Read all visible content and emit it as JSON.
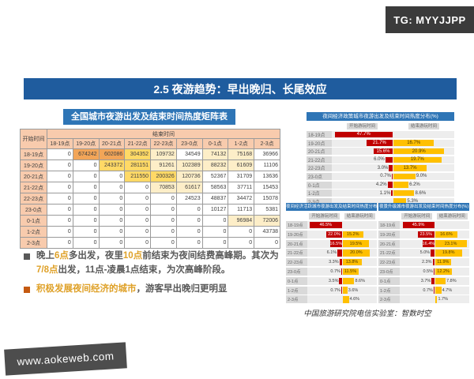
{
  "badge": "TG: MYYJJPP",
  "slide_title": "2.5 夜游趋势：早出晚归、长尾效应",
  "source": "中国旅游研究院电信实验室：智数时空",
  "watermark": "www.aokeweb.com",
  "colors": {
    "title_blue": "#1f5c9e",
    "table_blue": "#2e75b6",
    "header_salmon": "#f8cbad",
    "heat_orange": "#f2a558",
    "heat_yellow": "#ffd966",
    "bar_red": "#c00000",
    "bar_yellow": "#ffc000",
    "highlight_gold": "#dfa128",
    "badge_dark": "#3b3b3b"
  },
  "bullets": [
    {
      "square_color": "#595959",
      "segments": [
        {
          "t": "晚上"
        },
        {
          "t": "6点",
          "hl": true
        },
        {
          "t": "多出发，夜里"
        },
        {
          "t": "10点",
          "hl": true
        },
        {
          "t": "前结束为夜间结费高峰期。其次为"
        },
        {
          "t": "7/8点",
          "hl": true
        },
        {
          "t": "出发，11点-凌晨1点结束，为次高峰阶段。"
        }
      ]
    },
    {
      "square_color": "#c55a11",
      "segments": [
        {
          "t": "积极发展夜间经济的城市",
          "hl": true
        },
        {
          "t": "，游客早出晚归更明显"
        }
      ]
    }
  ],
  "chart_data": [
    {
      "type": "table",
      "title": "全国城市夜游出发及结束时间热度矩阵表",
      "corner": "开始时间",
      "group_header": "结束时间",
      "columns": [
        "18-19点",
        "19-20点",
        "20-21点",
        "21-22点",
        "22-23点",
        "23-0点",
        "0-1点",
        "1-2点",
        "2-3点"
      ],
      "rows": [
        "18-19点",
        "19-20点",
        "20-21点",
        "21-22点",
        "22-23点",
        "23-0点",
        "0-1点",
        "1-2点",
        "2-3点"
      ],
      "values": [
        [
          0,
          674242,
          602086,
          304352,
          109732,
          34549,
          74132,
          75168,
          36966
        ],
        [
          0,
          0,
          243372,
          281151,
          91261,
          102389,
          88232,
          61609,
          11106
        ],
        [
          0,
          0,
          0,
          211550,
          200326,
          120736,
          52367,
          31709,
          13636
        ],
        [
          0,
          0,
          0,
          0,
          70853,
          61617,
          58563,
          37711,
          15453
        ],
        [
          0,
          0,
          0,
          0,
          0,
          24523,
          48837,
          34472,
          15078
        ],
        [
          0,
          0,
          0,
          0,
          0,
          0,
          10127,
          11713,
          5381
        ],
        [
          0,
          0,
          0,
          0,
          0,
          0,
          0,
          96984,
          72006
        ],
        [
          0,
          0,
          0,
          0,
          0,
          0,
          0,
          0,
          43738
        ],
        [
          0,
          0,
          0,
          0,
          0,
          0,
          0,
          0,
          0
        ]
      ]
    },
    {
      "type": "bar",
      "title": "夜间经济政策城市夜游出发及结束时间热度分布(%)",
      "categories": [
        "18-19点",
        "19-20点",
        "20-21点",
        "21-22点",
        "22-23点",
        "23-0点",
        "0-1点",
        "1-2点",
        "2-3点"
      ],
      "left_max": 50,
      "right_max": 25,
      "series": [
        {
          "name": "开始游玩时间",
          "values": [
            47.7,
            21.7,
            15.6,
            6.0,
            3.0,
            0.7,
            4.2,
            1.1,
            null
          ]
        },
        {
          "name": "结束游玩时间",
          "values": [
            null,
            16.7,
            20.9,
            19.7,
            13.7,
            9.0,
            6.2,
            8.6,
            5.3
          ]
        }
      ]
    },
    {
      "type": "bar",
      "title": "夜间经济活跃城市夜游出发及结束时间热度分布(%)",
      "categories": [
        "18-19点",
        "19-20点",
        "20-21点",
        "21-22点",
        "22-23点",
        "23-0点",
        "0-1点",
        "1-2点",
        "2-3点"
      ],
      "left_max": 50,
      "right_max": 25,
      "series": [
        {
          "name": "开始游玩时间",
          "values": [
            46.5,
            22.0,
            16.5,
            6.1,
            3.3,
            0.7,
            3.5,
            0.7,
            null
          ]
        },
        {
          "name": "结束游玩时间",
          "values": [
            null,
            15.2,
            19.5,
            20.0,
            13.8,
            11.5,
            8.6,
            3.6,
            4.6
          ]
        }
      ]
    },
    {
      "type": "bar",
      "title": "夜景升级城市夜游出发及结束时间热度分布(%)",
      "categories": [
        "18-19点",
        "19-20点",
        "20-21点",
        "21-22点",
        "22-23点",
        "23-0点",
        "0-1点",
        "1-2点",
        "2-3点"
      ],
      "left_max": 50,
      "right_max": 25,
      "series": [
        {
          "name": "开始游玩时间",
          "values": [
            45.9,
            23.5,
            16.4,
            5.0,
            2.3,
            0.5,
            3.7,
            0.7,
            null
          ]
        },
        {
          "name": "结束游玩时间",
          "values": [
            null,
            16.6,
            23.1,
            19.8,
            11.9,
            12.2,
            7.8,
            4.7,
            1.7
          ]
        }
      ]
    }
  ]
}
